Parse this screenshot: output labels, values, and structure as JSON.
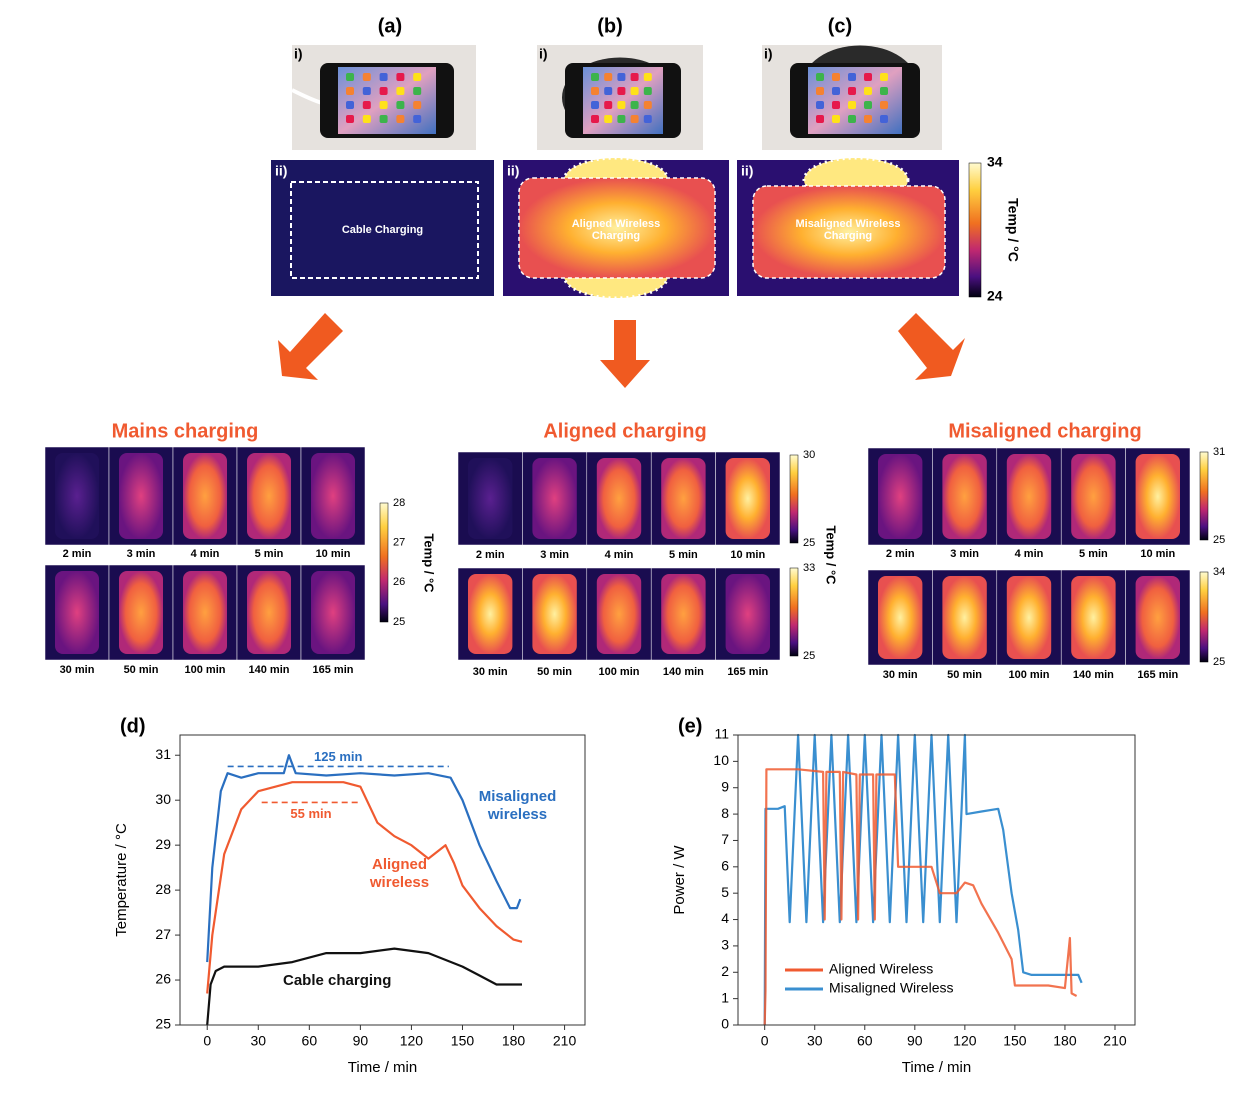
{
  "figure": {
    "top_columns": [
      {
        "label": "(a)",
        "photo_label": "i)",
        "thermal_label": "ii)",
        "caption": "Cable Charging"
      },
      {
        "label": "(b)",
        "photo_label": "i)",
        "thermal_label": "ii)",
        "caption": "Aligned Wireless Charging"
      },
      {
        "label": "(c)",
        "photo_label": "i)",
        "thermal_label": "ii)",
        "caption": "Misaligned Wireless Charging"
      }
    ],
    "top_colorbar": {
      "ticks": [
        34,
        24
      ],
      "label": "Temp / °C"
    },
    "sequences": [
      {
        "title": "Mains charging",
        "times": [
          [
            "2 min",
            "3 min",
            "4 min",
            "5 min",
            "10 min"
          ],
          [
            "30 min",
            "50 min",
            "100 min",
            "140 min",
            "165 min"
          ]
        ],
        "colorbars": [
          [
            28,
            27,
            26,
            25
          ]
        ],
        "colorbar_label": "Temp / °C"
      },
      {
        "title": "Aligned charging",
        "times": [
          [
            "2 min",
            "3 min",
            "4 min",
            "5 min",
            "10 min"
          ],
          [
            "30 min",
            "50 min",
            "100 min",
            "140 min",
            "165 min"
          ]
        ],
        "colorbars": [
          [
            30,
            25
          ],
          [
            33,
            25
          ]
        ],
        "colorbar_label": "Temp / °C"
      },
      {
        "title": "Misaligned charging",
        "times": [
          [
            "2 min",
            "3 min",
            "4 min",
            "5 min",
            "10 min"
          ],
          [
            "30 min",
            "50 min",
            "100 min",
            "140 min",
            "165 min"
          ]
        ],
        "colorbars": [
          [
            31,
            25
          ],
          [
            34,
            25
          ]
        ]
      }
    ]
  },
  "chart_data": [
    {
      "type": "line",
      "panel": "(d)",
      "xlabel": "Time / min",
      "ylabel": "Temperature / °C",
      "xlim": [
        -16,
        222
      ],
      "ylim": [
        25,
        31.45
      ],
      "xticks": [
        0,
        30,
        60,
        90,
        120,
        150,
        180,
        210
      ],
      "yticks": [
        25,
        26,
        27,
        28,
        29,
        30,
        31
      ],
      "series": [
        {
          "name": "Misaligned wireless",
          "color": "#2a6fc0",
          "x": [
            0,
            3,
            8,
            12,
            20,
            30,
            45,
            48,
            52,
            70,
            90,
            110,
            130,
            143,
            150,
            160,
            170,
            178,
            182,
            184
          ],
          "values": [
            26.4,
            28.5,
            30.2,
            30.6,
            30.5,
            30.6,
            30.6,
            31.0,
            30.6,
            30.55,
            30.6,
            30.55,
            30.6,
            30.5,
            30.0,
            29.0,
            28.2,
            27.6,
            27.6,
            27.8
          ]
        },
        {
          "name": "Aligned wireless",
          "color": "#f05a30",
          "x": [
            0,
            3,
            10,
            20,
            30,
            40,
            50,
            60,
            80,
            90,
            95,
            100,
            110,
            120,
            130,
            140,
            145,
            150,
            160,
            170,
            180,
            185
          ],
          "values": [
            25.7,
            27.0,
            28.8,
            29.8,
            30.2,
            30.3,
            30.4,
            30.4,
            30.4,
            30.3,
            29.9,
            29.5,
            29.2,
            29.0,
            28.7,
            29.0,
            28.6,
            28.1,
            27.6,
            27.2,
            26.9,
            26.85
          ]
        },
        {
          "name": "Cable charging",
          "color": "#111111",
          "x": [
            0,
            2,
            5,
            10,
            30,
            50,
            70,
            90,
            110,
            130,
            150,
            160,
            170,
            185
          ],
          "values": [
            25.0,
            25.9,
            26.2,
            26.3,
            26.3,
            26.4,
            26.6,
            26.6,
            26.7,
            26.6,
            26.3,
            26.1,
            25.9,
            25.9
          ]
        }
      ],
      "annotations": [
        {
          "text": "125 min",
          "x": [
            12,
            142
          ],
          "y": 30.75,
          "color": "#2a6fc0"
        },
        {
          "text": "55 min",
          "x": [
            32,
            90
          ],
          "y": 29.95,
          "color": "#f05a30"
        }
      ]
    },
    {
      "type": "line",
      "panel": "(e)",
      "xlabel": "Time / min",
      "ylabel": "Power / W",
      "legend": "lower left",
      "xlim": [
        -16,
        222
      ],
      "ylim": [
        0,
        11
      ],
      "xticks": [
        0,
        30,
        60,
        90,
        120,
        150,
        180,
        210
      ],
      "yticks": [
        0,
        1,
        2,
        3,
        4,
        5,
        6,
        7,
        8,
        9,
        10,
        11
      ],
      "series": [
        {
          "name": "Aligned Wireless",
          "color": "#f05a30",
          "x": [
            0,
            0.5,
            1,
            20,
            35,
            36,
            37,
            45,
            46,
            47,
            55,
            56,
            57,
            65,
            66,
            67,
            78,
            80,
            100,
            105,
            115,
            120,
            125,
            130,
            140,
            148,
            150,
            170,
            180,
            183,
            184,
            187
          ],
          "values": [
            0,
            1.3,
            9.7,
            9.7,
            9.6,
            4.0,
            9.6,
            9.6,
            4.0,
            9.6,
            9.5,
            4.0,
            9.5,
            9.5,
            4.0,
            9.5,
            9.5,
            6.0,
            6.0,
            5.0,
            5.0,
            5.4,
            5.3,
            4.6,
            3.5,
            2.5,
            1.5,
            1.5,
            1.4,
            3.3,
            1.2,
            1.1
          ]
        },
        {
          "name": "Misaligned Wireless",
          "color": "#3a8fd0",
          "x": [
            0,
            0.5,
            8,
            12,
            15,
            20,
            25,
            30,
            35,
            40,
            45,
            50,
            55,
            60,
            65,
            70,
            75,
            80,
            85,
            90,
            95,
            100,
            105,
            110,
            115,
            120,
            121,
            130,
            140,
            143,
            148,
            152,
            155,
            160,
            170,
            180,
            188,
            190
          ],
          "values": [
            0,
            8.2,
            8.2,
            8.3,
            3.9,
            11,
            3.9,
            11,
            3.9,
            11,
            3.9,
            11,
            3.9,
            11,
            3.9,
            11,
            3.9,
            11,
            3.9,
            11,
            3.9,
            11,
            3.9,
            11,
            3.9,
            11,
            8.0,
            8.1,
            8.2,
            7.4,
            5.0,
            3.6,
            2.0,
            1.9,
            1.9,
            1.9,
            1.9,
            1.6
          ]
        }
      ]
    }
  ]
}
